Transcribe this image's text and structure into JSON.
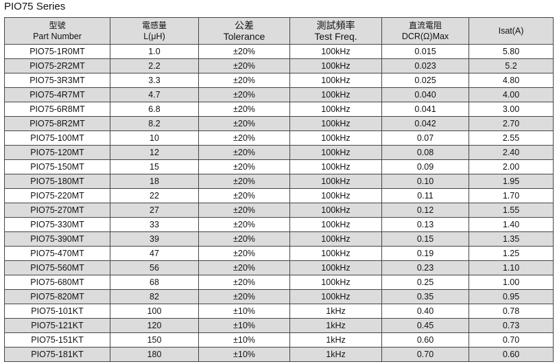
{
  "title": "PIO75  Series",
  "headers": [
    {
      "cn": "型號",
      "en": "Part Number"
    },
    {
      "cn": "電感量",
      "en": "L(μH)"
    },
    {
      "cn": "公差",
      "en": "Tolerance"
    },
    {
      "cn": "測試頻率",
      "en": "Test Freq."
    },
    {
      "cn": "直流電阻",
      "en": "DCR(Ω)Max"
    },
    {
      "cn": "",
      "en": "Isat(A)"
    }
  ],
  "rows": [
    [
      "PIO75-1R0MT",
      "1.0",
      "±20%",
      "100kHz",
      "0.015",
      "5.80"
    ],
    [
      "PIO75-2R2MT",
      "2.2",
      "±20%",
      "100kHz",
      "0.023",
      "5.2"
    ],
    [
      "PIO75-3R3MT",
      "3.3",
      "±20%",
      "100kHz",
      "0.025",
      "4.80"
    ],
    [
      "PIO75-4R7MT",
      "4.7",
      "±20%",
      "100kHz",
      "0.040",
      "4.00"
    ],
    [
      "PIO75-6R8MT",
      "6.8",
      "±20%",
      "100kHz",
      "0.041",
      "3.00"
    ],
    [
      "PIO75-8R2MT",
      "8.2",
      "±20%",
      "100kHz",
      "0.042",
      "2.70"
    ],
    [
      "PIO75-100MT",
      "10",
      "±20%",
      "100kHz",
      "0.07",
      "2.55"
    ],
    [
      "PIO75-120MT",
      "12",
      "±20%",
      "100kHz",
      "0.08",
      "2.40"
    ],
    [
      "PIO75-150MT",
      "15",
      "±20%",
      "100kHz",
      "0.09",
      "2.00"
    ],
    [
      "PIO75-180MT",
      "18",
      "±20%",
      "100kHz",
      "0.10",
      "1.95"
    ],
    [
      "PIO75-220MT",
      "22",
      "±20%",
      "100kHz",
      "0.11",
      "1.70"
    ],
    [
      "PIO75-270MT",
      "27",
      "±20%",
      "100kHz",
      "0.12",
      "1.55"
    ],
    [
      "PIO75-330MT",
      "33",
      "±20%",
      "100kHz",
      "0.13",
      "1.40"
    ],
    [
      "PIO75-390MT",
      "39",
      "±20%",
      "100kHz",
      "0.15",
      "1.35"
    ],
    [
      "PIO75-470MT",
      "47",
      "±20%",
      "100kHz",
      "0.19",
      "1.25"
    ],
    [
      "PIO75-560MT",
      "56",
      "±20%",
      "100kHz",
      "0.23",
      "1.10"
    ],
    [
      "PIO75-680MT",
      "68",
      "±20%",
      "100kHz",
      "0.25",
      "1.00"
    ],
    [
      "PIO75-820MT",
      "82",
      "±20%",
      "100kHz",
      "0.35",
      "0.95"
    ],
    [
      "PIO75-101KT",
      "100",
      "±10%",
      "1kHz",
      "0.40",
      "0.78"
    ],
    [
      "PIO75-121KT",
      "120",
      "±10%",
      "1kHz",
      "0.45",
      "0.73"
    ],
    [
      "PIO75-151KT",
      "150",
      "±10%",
      "1kHz",
      "0.60",
      "0.70"
    ],
    [
      "PIO75-181KT",
      "180",
      "±10%",
      "1kHz",
      "0.70",
      "0.60"
    ]
  ]
}
